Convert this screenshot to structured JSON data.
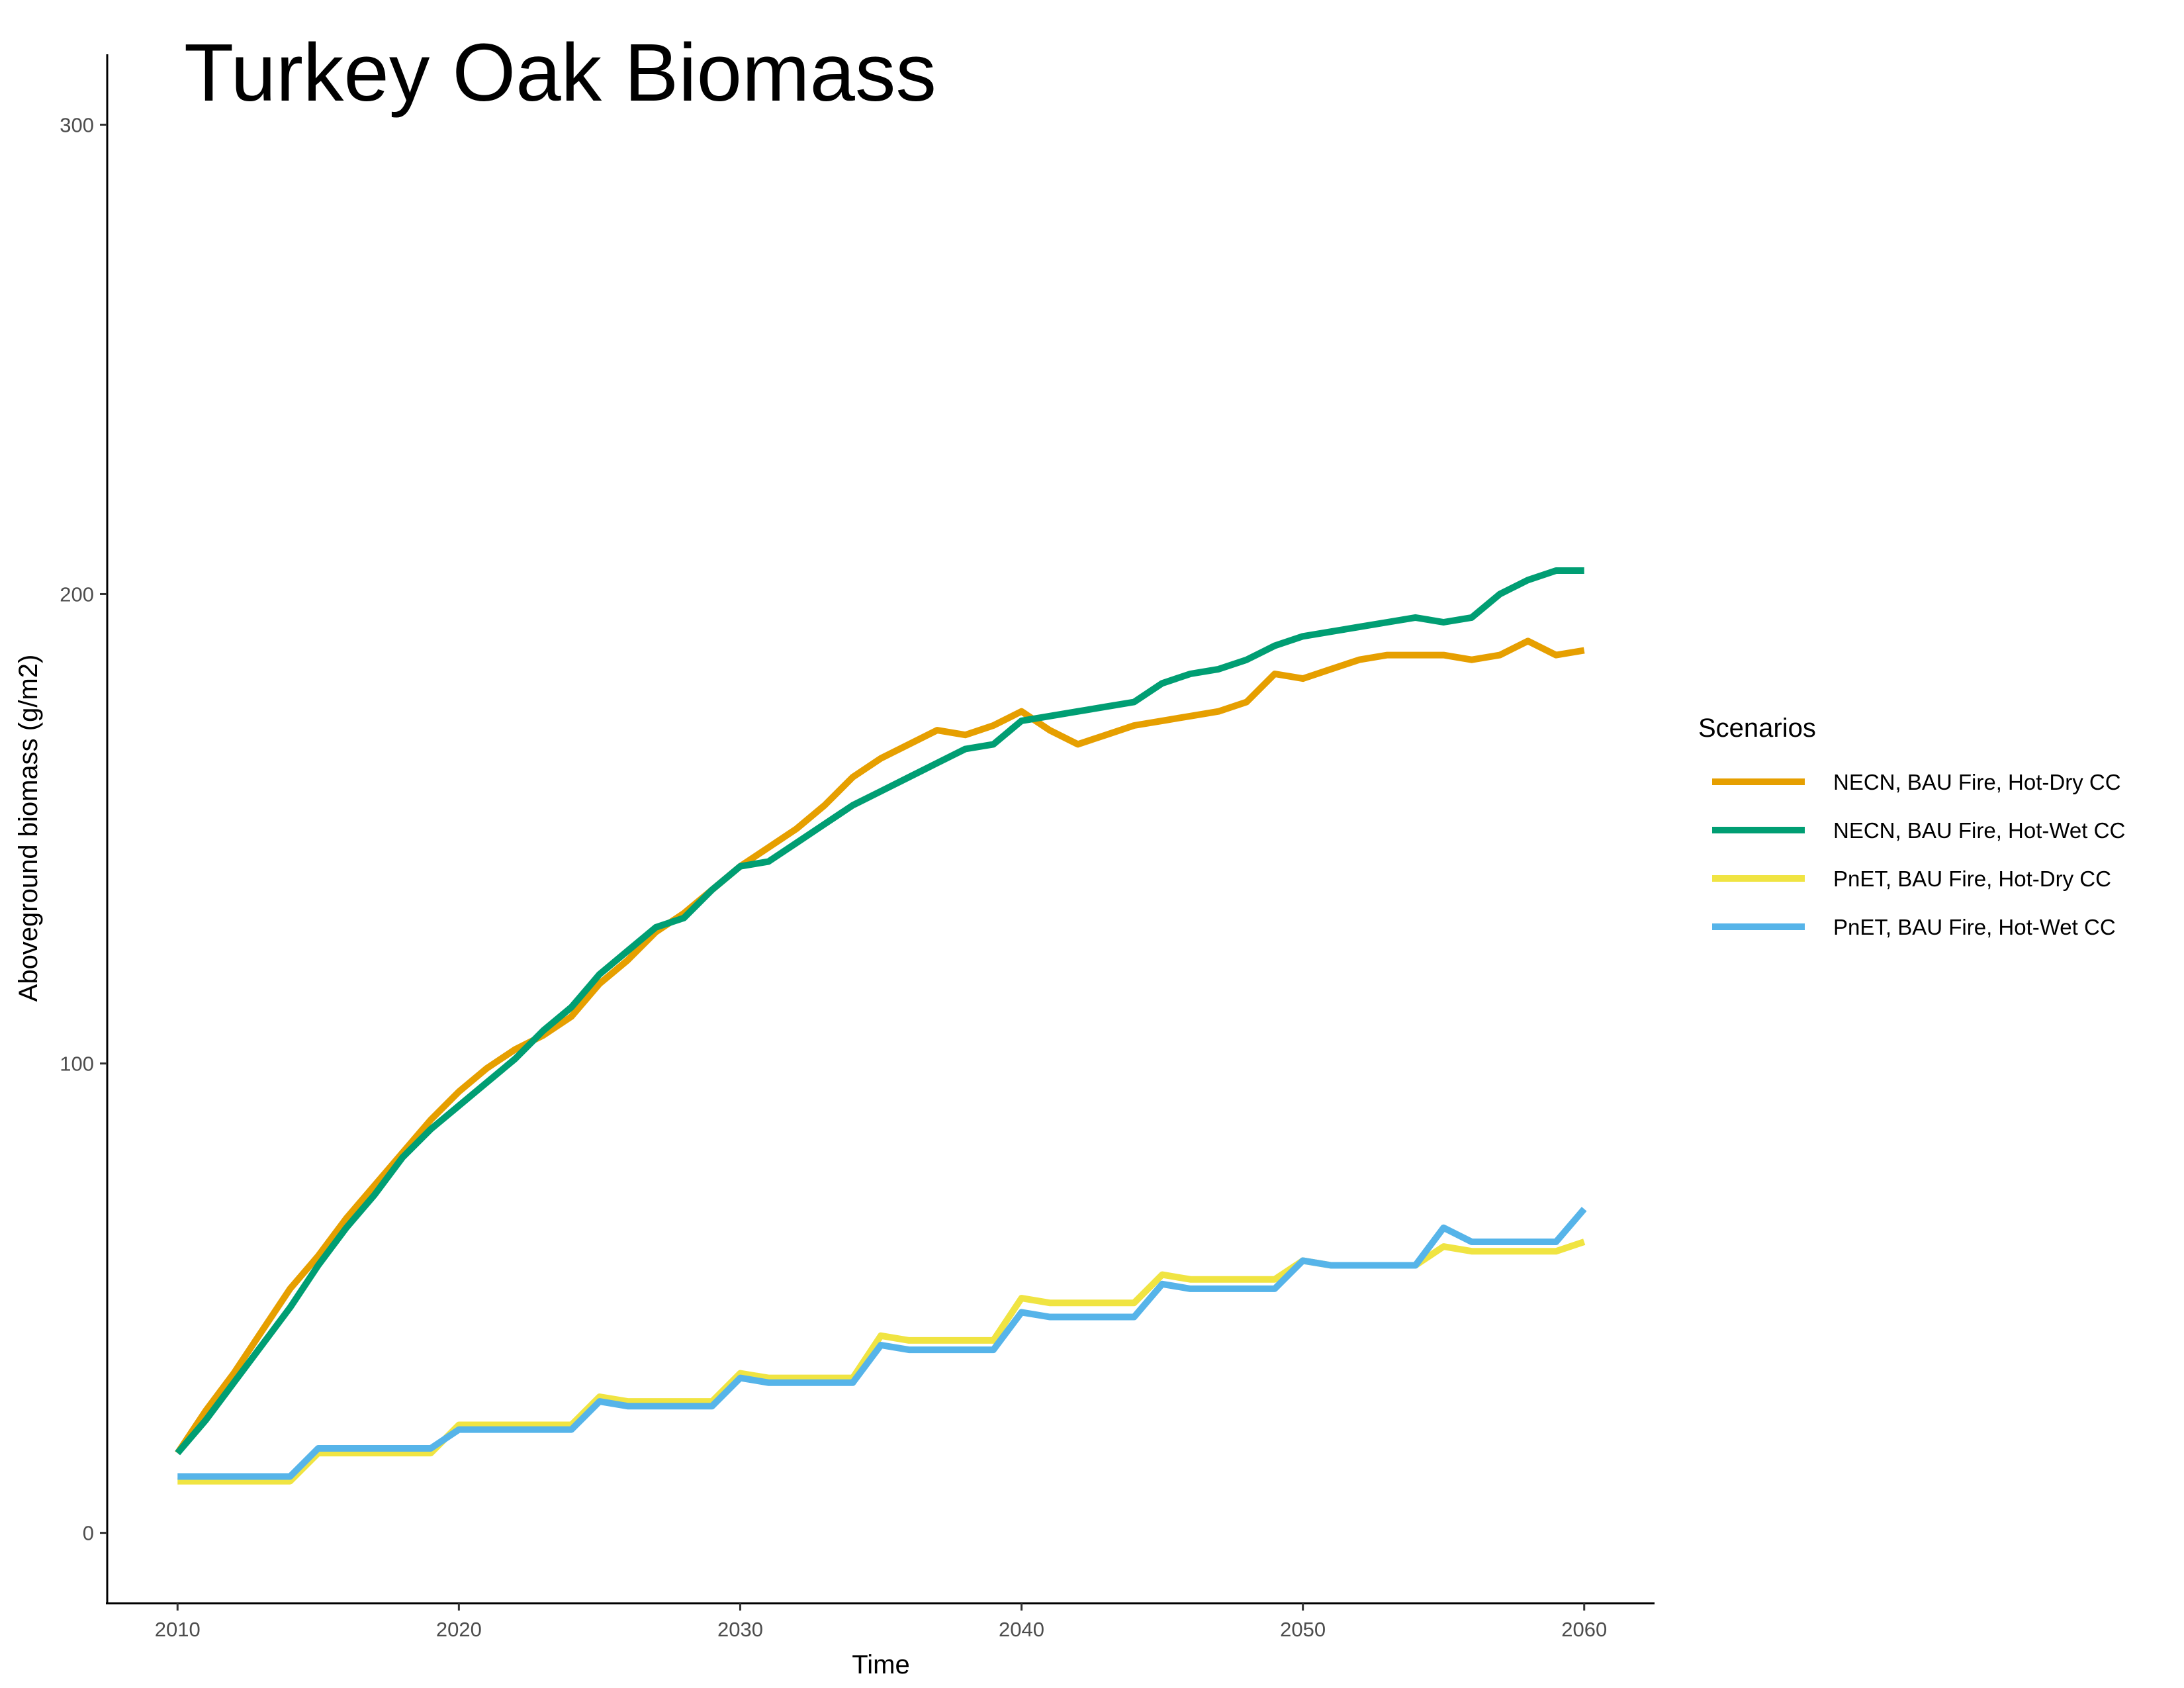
{
  "chart_data": {
    "type": "line",
    "title": "Turkey Oak Biomass",
    "xlabel": "Time",
    "ylabel": "Aboveground biomass (g/m2)",
    "xlim": [
      2007.5,
      2062.5
    ],
    "ylim": [
      -15,
      315
    ],
    "xticks": [
      2010,
      2020,
      2030,
      2040,
      2050,
      2060
    ],
    "yticks": [
      0,
      100,
      200,
      300
    ],
    "x_tick_labels": [
      "2010",
      "2020",
      "2030",
      "2040",
      "2050",
      "2060"
    ],
    "y_tick_labels": [
      "0",
      "100",
      "200",
      "300"
    ],
    "grid": false,
    "legend": {
      "title": "Scenarios",
      "position": "right"
    },
    "x": [
      2010,
      2011,
      2012,
      2013,
      2014,
      2015,
      2016,
      2017,
      2018,
      2019,
      2020,
      2021,
      2022,
      2023,
      2024,
      2025,
      2026,
      2027,
      2028,
      2029,
      2030,
      2031,
      2032,
      2033,
      2034,
      2035,
      2036,
      2037,
      2038,
      2039,
      2040,
      2041,
      2042,
      2043,
      2044,
      2045,
      2046,
      2047,
      2048,
      2049,
      2050,
      2051,
      2052,
      2053,
      2054,
      2055,
      2056,
      2057,
      2058,
      2059,
      2060
    ],
    "series": [
      {
        "name": "NECN, BAU Fire, Hot-Dry CC",
        "color": "#E69F00",
        "values": [
          17,
          26,
          34,
          43,
          52,
          59,
          67,
          74,
          81,
          88,
          94,
          99,
          103,
          106,
          110,
          117,
          122,
          128,
          132,
          137,
          142,
          146,
          150,
          155,
          161,
          165,
          168,
          171,
          170,
          172,
          175,
          171,
          168,
          170,
          172,
          173,
          174,
          175,
          177,
          183,
          182,
          184,
          186,
          187,
          187,
          187,
          186,
          187,
          190,
          187,
          188
        ]
      },
      {
        "name": "NECN, BAU Fire, Hot-Wet CC",
        "color": "#009E73",
        "values": [
          17,
          24,
          32,
          40,
          48,
          57,
          65,
          72,
          80,
          86,
          91,
          96,
          101,
          107,
          112,
          119,
          124,
          129,
          131,
          137,
          142,
          143,
          147,
          151,
          155,
          158,
          161,
          164,
          167,
          168,
          173,
          174,
          175,
          176,
          177,
          181,
          183,
          184,
          186,
          189,
          191,
          192,
          193,
          194,
          195,
          194,
          195,
          200,
          203,
          205,
          205
        ]
      },
      {
        "name": "PnET, BAU Fire, Hot-Dry CC",
        "color": "#F0E442",
        "values": [
          11,
          11,
          11,
          11,
          11,
          17,
          17,
          17,
          17,
          17,
          23,
          23,
          23,
          23,
          23,
          29,
          28,
          28,
          28,
          28,
          34,
          33,
          33,
          33,
          33,
          42,
          41,
          41,
          41,
          41,
          50,
          49,
          49,
          49,
          49,
          55,
          54,
          54,
          54,
          54,
          58,
          57,
          57,
          57,
          57,
          61,
          60,
          60,
          60,
          60,
          62
        ]
      },
      {
        "name": "PnET, BAU Fire, Hot-Wet CC",
        "color": "#56B4E9",
        "values": [
          12,
          12,
          12,
          12,
          12,
          18,
          18,
          18,
          18,
          18,
          22,
          22,
          22,
          22,
          22,
          28,
          27,
          27,
          27,
          27,
          33,
          32,
          32,
          32,
          32,
          40,
          39,
          39,
          39,
          39,
          47,
          46,
          46,
          46,
          46,
          53,
          52,
          52,
          52,
          52,
          58,
          57,
          57,
          57,
          57,
          65,
          62,
          62,
          62,
          62,
          69
        ]
      }
    ]
  }
}
